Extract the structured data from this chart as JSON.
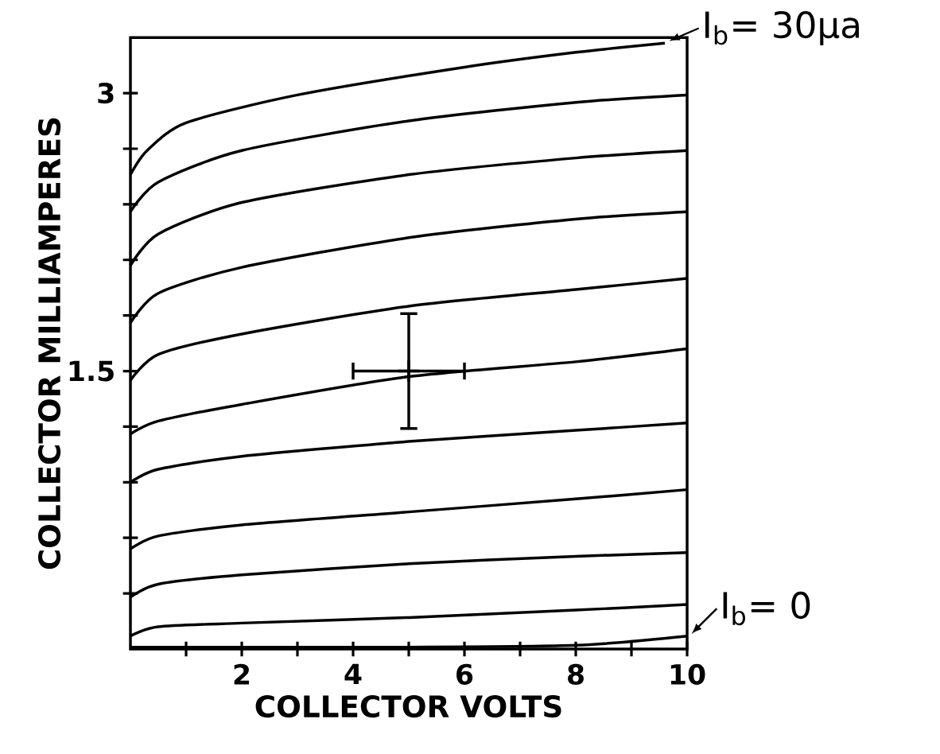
{
  "chart_data": {
    "type": "line",
    "xlabel": "COLLECTOR VOLTS",
    "ylabel": "COLLECTOR MILLIAMPERES",
    "xlim": [
      0,
      10
    ],
    "ylim": [
      0,
      3.3
    ],
    "xticks": [
      {
        "value": 1,
        "label": null
      },
      2,
      {
        "value": 3,
        "label": null
      },
      4,
      {
        "value": 5,
        "label": null
      },
      6,
      {
        "value": 7,
        "label": null
      },
      8,
      {
        "value": 9,
        "label": null
      },
      10
    ],
    "yticks": [
      {
        "value": 0.3,
        "label": null
      },
      {
        "value": 0.6,
        "label": null
      },
      {
        "value": 0.9,
        "label": null
      },
      {
        "value": 1.2,
        "label": null
      },
      1.5,
      {
        "value": 1.8,
        "label": null
      },
      {
        "value": 2.1,
        "label": null
      },
      {
        "value": 2.4,
        "label": null
      },
      {
        "value": 2.7,
        "label": null
      },
      3
    ],
    "grid": false,
    "marker": "none",
    "line_style": "solid",
    "x": [
      0,
      0.5,
      2,
      5,
      8,
      10
    ],
    "series": [
      {
        "color": "#000000",
        "x": [
          0,
          0.3,
          1,
          3,
          6,
          8,
          9.6
        ],
        "values": [
          2.56,
          2.69,
          2.84,
          2.99,
          3.14,
          3.22,
          3.27
        ]
      },
      {
        "color": "#000000",
        "values": [
          2.36,
          2.52,
          2.69,
          2.85,
          2.95,
          2.99
        ]
      },
      {
        "color": "#000000",
        "values": [
          2.07,
          2.24,
          2.41,
          2.56,
          2.65,
          2.69
        ]
      },
      {
        "color": "#000000",
        "values": [
          1.76,
          1.92,
          2.06,
          2.22,
          2.32,
          2.36
        ]
      },
      {
        "color": "#000000",
        "values": [
          1.45,
          1.59,
          1.7,
          1.85,
          1.94,
          2.0
        ]
      },
      {
        "color": "#000000",
        "values": [
          1.16,
          1.23,
          1.32,
          1.47,
          1.55,
          1.62
        ]
      },
      {
        "color": "#000000",
        "values": [
          0.9,
          0.97,
          1.04,
          1.12,
          1.18,
          1.22
        ]
      },
      {
        "color": "#000000",
        "values": [
          0.54,
          0.61,
          0.67,
          0.74,
          0.81,
          0.86
        ]
      },
      {
        "color": "#000000",
        "values": [
          0.28,
          0.35,
          0.4,
          0.46,
          0.5,
          0.52
        ]
      },
      {
        "color": "#000000",
        "values": [
          0.07,
          0.12,
          0.14,
          0.17,
          0.21,
          0.24
        ]
      },
      {
        "color": "#000000",
        "values": [
          0.01,
          0.01,
          0.01,
          0.01,
          0.02,
          0.07
        ]
      },
      {
        "type": "scatter",
        "marker": "cross",
        "color": "#000000",
        "x": [
          5
        ],
        "values": [
          1.5
        ],
        "errors": [
          0.31
        ],
        "xerrors": [
          1
        ]
      }
    ],
    "annotations": [
      {
        "text": "I$_{b}$= 30μa",
        "x": 9.6,
        "y": 3.27
      },
      {
        "text": "I$_{b}$= 0",
        "x": 10,
        "y": 0.07
      }
    ]
  }
}
